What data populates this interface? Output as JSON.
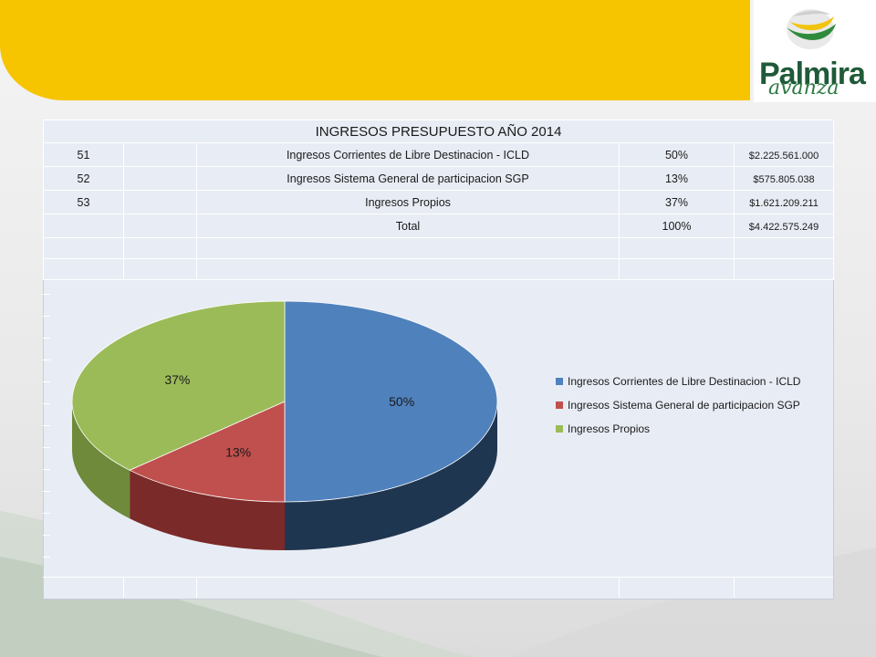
{
  "brand": {
    "name": "Palmira",
    "tagline": "avanza"
  },
  "table": {
    "title": "INGRESOS PRESUPUESTO AÑO 2014",
    "rows": [
      {
        "code": "51",
        "concept": "Ingresos Corrientes de Libre Destinacion - ICLD",
        "percent": "50%",
        "amount": "$2.225.561.000"
      },
      {
        "code": "52",
        "concept": "Ingresos Sistema General de participacion SGP",
        "percent": "13%",
        "amount": "$575.805.038"
      },
      {
        "code": "53",
        "concept": "Ingresos Propios",
        "percent": "37%",
        "amount": "$1.621.209.211"
      },
      {
        "code": "",
        "concept": "Total",
        "percent": "100%",
        "amount": "$4.422.575.249"
      }
    ]
  },
  "chart_data": {
    "type": "pie",
    "title": "",
    "categories": [
      "Ingresos Corrientes de Libre Destinacion - ICLD",
      "Ingresos Sistema General de participacion SGP",
      "Ingresos Propios"
    ],
    "values": [
      50,
      13,
      37
    ],
    "data_labels": [
      "50%",
      "13%",
      "37%"
    ],
    "colors": [
      "#4f81bd",
      "#c0504d",
      "#9bbb59"
    ],
    "side_colors": [
      "#1f3650",
      "#7a2a28",
      "#6e8a3a"
    ],
    "legend_position": "right",
    "style": "3d"
  }
}
